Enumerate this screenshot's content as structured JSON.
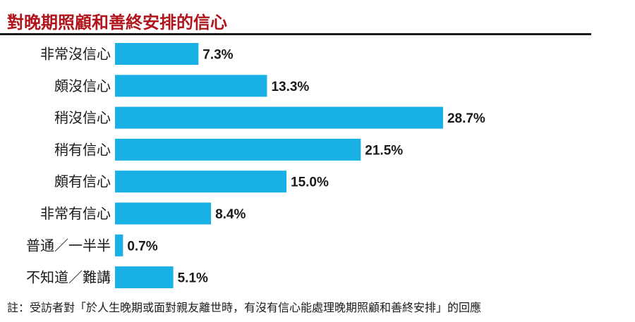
{
  "title": "對晚期照顧和善終安排的信心",
  "note": "註：受訪者對「於人生晚期或面對親友離世時，有沒有信心能處理晚期照顧和善終安排」的回應",
  "colors": {
    "bar": "#19b0e6",
    "title": "#b0151c",
    "text": "#1a1a1a"
  },
  "chart_data": {
    "type": "bar",
    "orientation": "horizontal",
    "title": "對晚期照顧和善終安排的信心",
    "categories": [
      "非常沒信心",
      "頗沒信心",
      "稍沒信心",
      "稍有信心",
      "頗有信心",
      "非常有信心",
      "普通／一半半",
      "不知道／難講"
    ],
    "values": [
      7.3,
      13.3,
      28.7,
      21.5,
      15.0,
      8.4,
      0.7,
      5.1
    ],
    "value_labels": [
      "7.3%",
      "13.3%",
      "28.7%",
      "21.5%",
      "15.0%",
      "8.4%",
      "0.7%",
      "5.1%"
    ],
    "unit": "%",
    "xlabel": "",
    "ylabel": "",
    "xlim": [
      0,
      30
    ],
    "grid": false,
    "legend": "none"
  }
}
